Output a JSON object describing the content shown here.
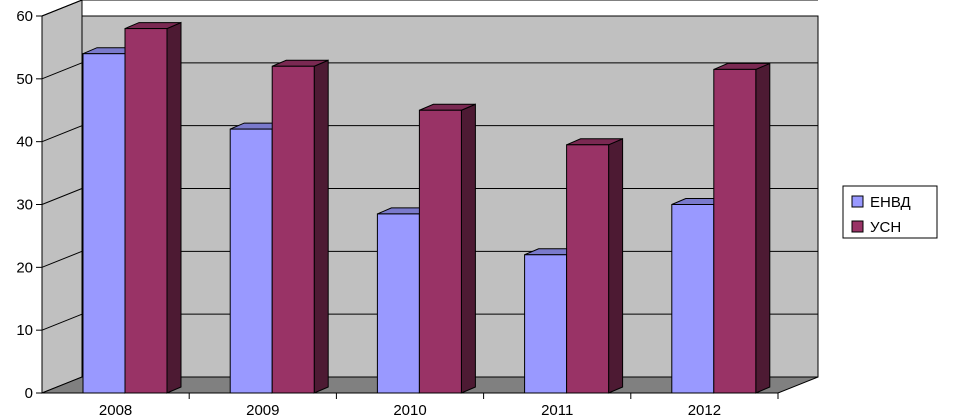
{
  "chart_data": {
    "type": "bar",
    "style": "3d-clustered-column",
    "categories": [
      "2008",
      "2009",
      "2010",
      "2011",
      "2012"
    ],
    "series": [
      {
        "name": "ЕНВД",
        "values": [
          54,
          42,
          28.5,
          22,
          30
        ],
        "color": "#9999ff"
      },
      {
        "name": "УСН",
        "values": [
          58,
          52,
          45,
          39.5,
          51.5
        ],
        "color": "#993366"
      }
    ],
    "ylim": [
      0,
      60
    ],
    "yticks": [
      "0",
      "10",
      "20",
      "30",
      "40",
      "50",
      "60"
    ],
    "grid": true,
    "legend": "right",
    "title": "",
    "xlabel": "",
    "ylabel": ""
  },
  "colors": {
    "wall": "#c0c0c0",
    "floor": "#808080",
    "gridline": "#000000",
    "envd_side": "#4c4c80",
    "envd_top": "#7a7acc",
    "usn_side": "#4d1a33",
    "usn_top": "#7a2952"
  }
}
